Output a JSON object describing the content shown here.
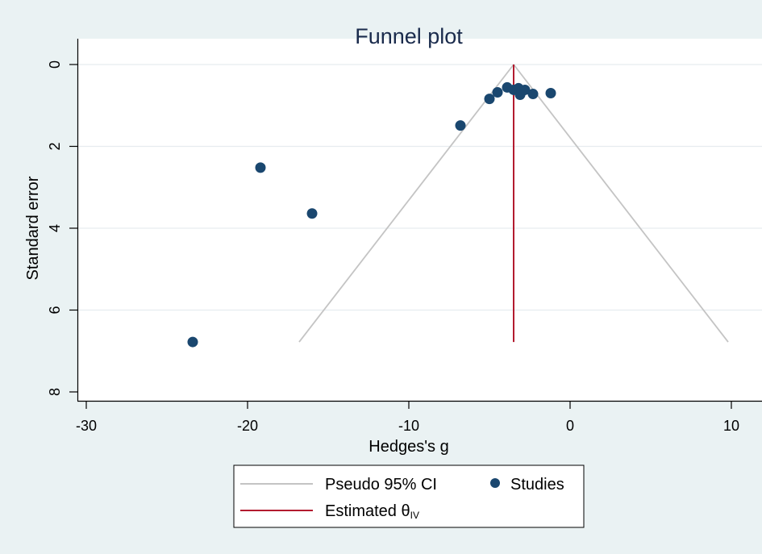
{
  "chart_data": {
    "type": "scatter",
    "title": "Funnel plot",
    "xlabel": "Hedges's g",
    "ylabel": "Standard error",
    "xlim": [
      -30,
      10
    ],
    "ylim": [
      8,
      0
    ],
    "y_axis_inverted": true,
    "x_ticks": [
      -30,
      -20,
      -10,
      0,
      10
    ],
    "x_tick_labels": [
      "-30",
      "-20",
      "-10",
      "0",
      "10"
    ],
    "y_ticks": [
      0,
      2,
      4,
      6,
      8
    ],
    "y_tick_labels": [
      "0",
      "2",
      "4",
      "6",
      "8"
    ],
    "grid": "horizontal",
    "legend_position": "bottom",
    "colors": {
      "background": "#eaf2f3",
      "plot_background": "#ffffff",
      "studies": "#1a476f",
      "pseudo_ci": "#c4c4c4",
      "estimate": "#b31b2f"
    },
    "estimate": {
      "label": "Estimated θ",
      "subscript": "IV",
      "x": -3.5,
      "y_range": [
        0,
        6.78
      ]
    },
    "pseudo_ci": {
      "label": "Pseudo 95% CI",
      "apex": [
        -3.5,
        0
      ],
      "se_max": 6.78,
      "lower_x": -16.8,
      "upper_x": 9.8
    },
    "series": [
      {
        "name": "Studies",
        "points": [
          [
            -23.4,
            6.78
          ],
          [
            -19.2,
            2.52
          ],
          [
            -16.0,
            3.64
          ],
          [
            -6.8,
            1.49
          ],
          [
            -5.0,
            0.84
          ],
          [
            -4.5,
            0.68
          ],
          [
            -3.9,
            0.56
          ],
          [
            -3.5,
            0.62
          ],
          [
            -3.2,
            0.58
          ],
          [
            -3.1,
            0.74
          ],
          [
            -3.0,
            0.66
          ],
          [
            -2.8,
            0.62
          ],
          [
            -2.3,
            0.72
          ],
          [
            -1.2,
            0.7
          ]
        ]
      }
    ]
  }
}
